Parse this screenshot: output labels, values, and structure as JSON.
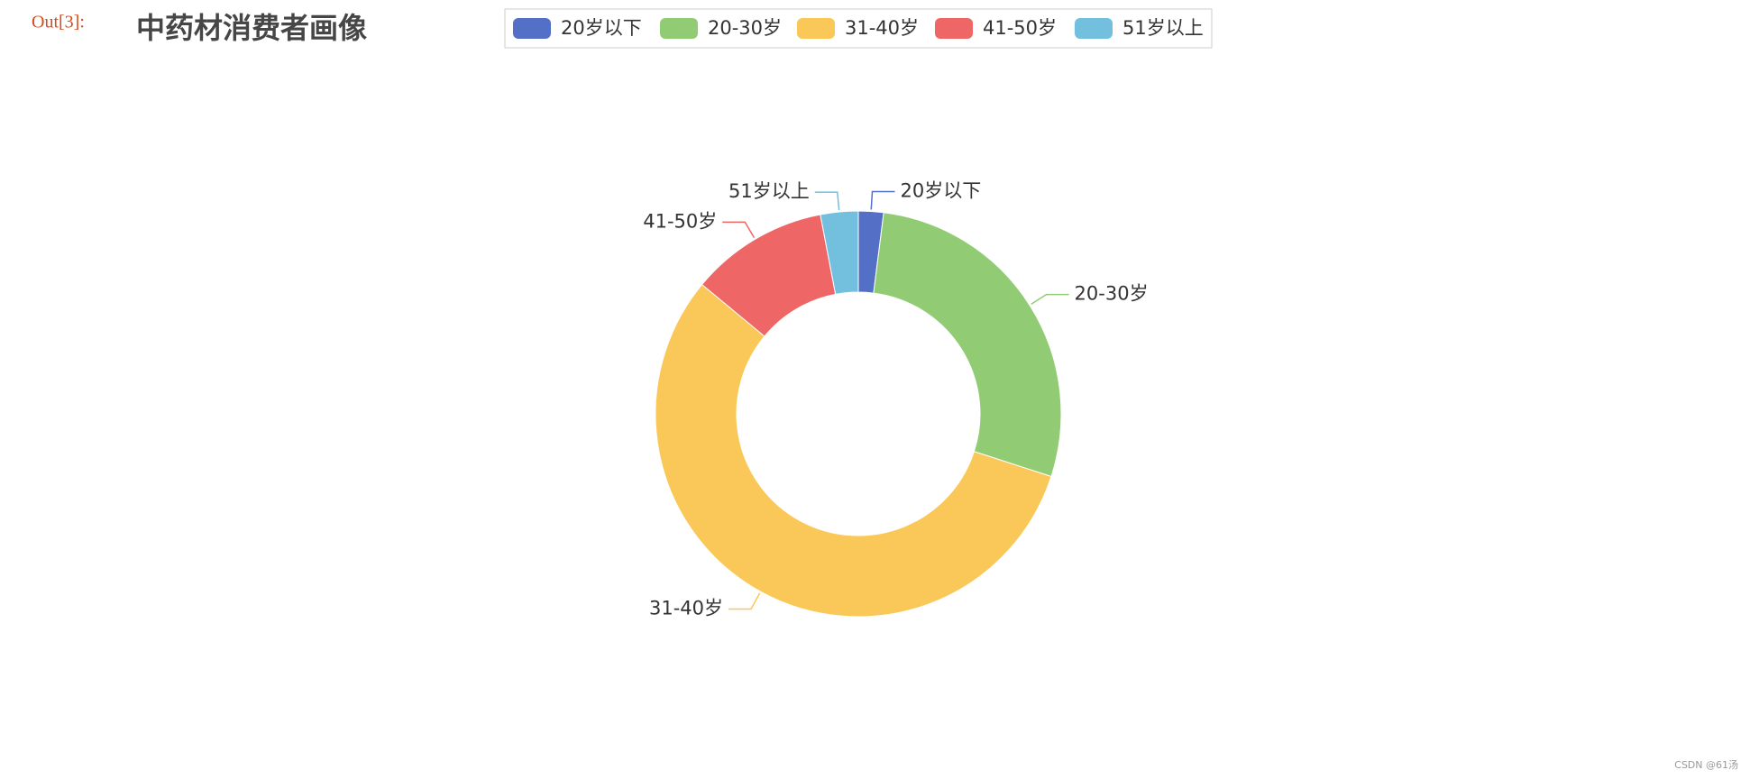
{
  "prompt": "Out[3]:",
  "watermark": "CSDN @61汤",
  "chart_data": {
    "type": "pie",
    "title": "中药材消费者画像",
    "categories": [
      "20岁以下",
      "20-30岁",
      "31-40岁",
      "41-50岁",
      "51岁以上"
    ],
    "values": [
      2,
      28,
      56,
      11,
      3
    ],
    "colors": [
      "#5470c6",
      "#91cc75",
      "#fac858",
      "#ee6666",
      "#73c0de"
    ],
    "donut": true,
    "legend": "top"
  }
}
